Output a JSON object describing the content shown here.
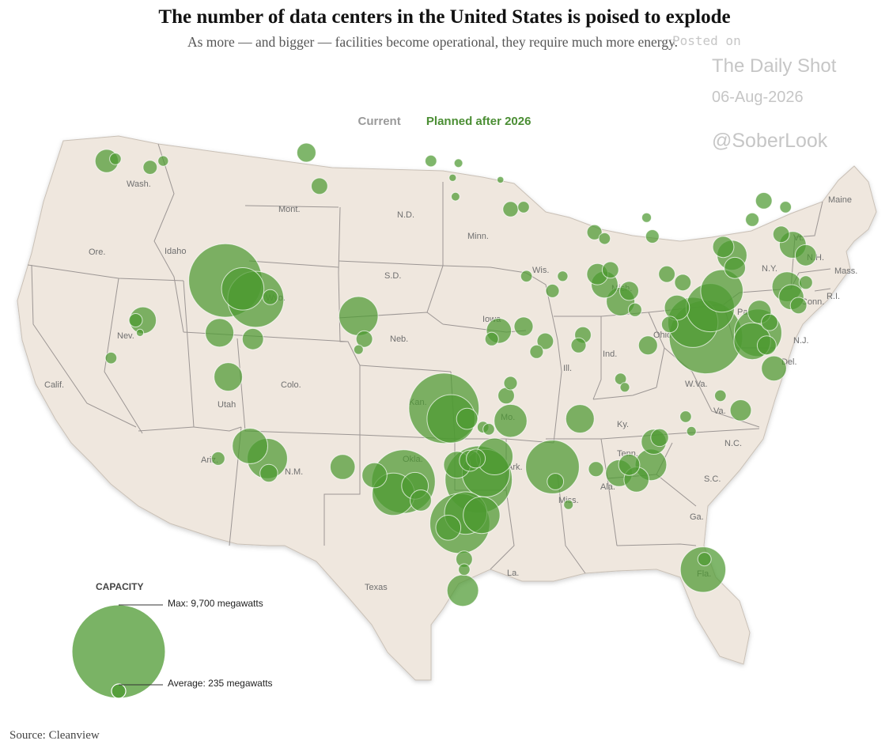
{
  "header": {
    "title": "The number of data centers in the United States is poised to explode",
    "subtitle": "As more — and bigger — facilities become operational, they require much more energy."
  },
  "legend": {
    "current_label": "Current",
    "planned_label": "Planned after 2026",
    "current_color": "#9a9a9a",
    "planned_color": "#4b8e34"
  },
  "watermark": {
    "posted": "Posted on",
    "brand": "The Daily Shot",
    "date": "06-Aug-2026",
    "handle": "@SoberLook"
  },
  "capacity_legend": {
    "title": "CAPACITY",
    "max_label": "Max: 9,700 megawatts",
    "avg_label": "Average: 235 megawatts",
    "max_mw": 9700,
    "avg_mw": 235
  },
  "source": "Source: Cleanview",
  "map": {
    "land_color": "#efe7de",
    "border_color": "#9c9694",
    "bubble_color": "#4e9a32",
    "state_labels": [
      "Wash.",
      "Ore.",
      "Calif.",
      "Nev.",
      "Idaho",
      "Mont.",
      "Wyo.",
      "Utah",
      "Ariz.",
      "Colo.",
      "N.M.",
      "N.D.",
      "S.D.",
      "Neb.",
      "Kan.",
      "Okla.",
      "Texas",
      "Minn.",
      "Iowa",
      "Mo.",
      "Ark.",
      "La.",
      "Wis.",
      "Ill.",
      "Mich.",
      "Ind.",
      "Ohio",
      "Ky.",
      "Tenn.",
      "Miss.",
      "Ala.",
      "Ga.",
      "Fla.",
      "S.C.",
      "N.C.",
      "Va.",
      "W.Va.",
      "Pa.",
      "N.Y.",
      "Vt.",
      "N.H.",
      "Maine",
      "Mass.",
      "Conn.",
      "R.I.",
      "N.J.",
      "Del."
    ],
    "bubbles": [
      {
        "lon": -122.3,
        "lat": 47.1,
        "mw": 600
      },
      {
        "lon": -121.7,
        "lat": 47.2,
        "mw": 150
      },
      {
        "lon": -119.3,
        "lat": 46.8,
        "mw": 220
      },
      {
        "lon": -118.4,
        "lat": 47.1,
        "mw": 120
      },
      {
        "lon": -108.5,
        "lat": 47.5,
        "mw": 400
      },
      {
        "lon": -107.6,
        "lat": 45.9,
        "mw": 300
      },
      {
        "lon": -99.9,
        "lat": 47.1,
        "mw": 150
      },
      {
        "lon": -98.0,
        "lat": 47.0,
        "mw": 80
      },
      {
        "lon": -98.4,
        "lat": 46.3,
        "mw": 60
      },
      {
        "lon": -98.2,
        "lat": 45.4,
        "mw": 80
      },
      {
        "lon": -95.1,
        "lat": 46.2,
        "mw": 50
      },
      {
        "lon": -94.4,
        "lat": 44.8,
        "mw": 260
      },
      {
        "lon": -93.5,
        "lat": 44.9,
        "mw": 150
      },
      {
        "lon": -114.1,
        "lat": 41.4,
        "mw": 6000
      },
      {
        "lon": -112.0,
        "lat": 40.5,
        "mw": 3500
      },
      {
        "lon": -112.9,
        "lat": 41.0,
        "mw": 2000
      },
      {
        "lon": -114.5,
        "lat": 38.9,
        "mw": 900
      },
      {
        "lon": -113.9,
        "lat": 36.8,
        "mw": 900
      },
      {
        "lon": -112.2,
        "lat": 38.6,
        "mw": 500
      },
      {
        "lon": -111.0,
        "lat": 40.6,
        "mw": 250
      },
      {
        "lon": -119.8,
        "lat": 39.5,
        "mw": 800
      },
      {
        "lon": -120.3,
        "lat": 39.5,
        "mw": 200
      },
      {
        "lon": -122.0,
        "lat": 37.7,
        "mw": 150
      },
      {
        "lon": -120.0,
        "lat": 38.9,
        "mw": 60
      },
      {
        "lon": -104.9,
        "lat": 39.7,
        "mw": 1700
      },
      {
        "lon": -104.5,
        "lat": 38.6,
        "mw": 300
      },
      {
        "lon": -104.9,
        "lat": 38.1,
        "mw": 100
      },
      {
        "lon": -112.4,
        "lat": 33.5,
        "mw": 1400
      },
      {
        "lon": -111.2,
        "lat": 32.9,
        "mw": 1800
      },
      {
        "lon": -111.1,
        "lat": 32.2,
        "mw": 350
      },
      {
        "lon": -114.6,
        "lat": 32.9,
        "mw": 200
      },
      {
        "lon": -106.0,
        "lat": 32.5,
        "mw": 700
      },
      {
        "lon": -103.8,
        "lat": 32.1,
        "mw": 700
      },
      {
        "lon": -99.0,
        "lat": 35.3,
        "mw": 5500
      },
      {
        "lon": -98.5,
        "lat": 34.8,
        "mw": 2600
      },
      {
        "lon": -97.4,
        "lat": 34.8,
        "mw": 500
      },
      {
        "lon": -96.3,
        "lat": 34.4,
        "mw": 150
      },
      {
        "lon": -95.9,
        "lat": 34.3,
        "mw": 150
      },
      {
        "lon": -94.7,
        "lat": 35.9,
        "mw": 300
      },
      {
        "lon": -94.4,
        "lat": 36.5,
        "mw": 200
      },
      {
        "lon": -94.4,
        "lat": 34.7,
        "mw": 1200
      },
      {
        "lon": -101.8,
        "lat": 31.8,
        "mw": 4500
      },
      {
        "lon": -102.5,
        "lat": 31.2,
        "mw": 2000
      },
      {
        "lon": -101.0,
        "lat": 31.6,
        "mw": 800
      },
      {
        "lon": -100.6,
        "lat": 30.9,
        "mw": 500
      },
      {
        "lon": -98.1,
        "lat": 32.6,
        "mw": 800
      },
      {
        "lon": -97.2,
        "lat": 32.8,
        "mw": 500
      },
      {
        "lon": -96.8,
        "lat": 32.9,
        "mw": 400
      },
      {
        "lon": -96.6,
        "lat": 31.9,
        "mw": 5000
      },
      {
        "lon": -96.1,
        "lat": 32.2,
        "mw": 2500
      },
      {
        "lon": -95.5,
        "lat": 33.0,
        "mw": 1500
      },
      {
        "lon": -97.9,
        "lat": 29.8,
        "mw": 4000
      },
      {
        "lon": -97.5,
        "lat": 30.3,
        "mw": 2000
      },
      {
        "lon": -96.4,
        "lat": 30.2,
        "mw": 1500
      },
      {
        "lon": -98.7,
        "lat": 29.6,
        "mw": 700
      },
      {
        "lon": -97.7,
        "lat": 26.6,
        "mw": 1100
      },
      {
        "lon": -97.6,
        "lat": 28.1,
        "mw": 300
      },
      {
        "lon": -97.6,
        "lat": 27.6,
        "mw": 150
      },
      {
        "lon": -91.5,
        "lat": 32.5,
        "mw": 3200
      },
      {
        "lon": -91.3,
        "lat": 31.8,
        "mw": 300
      },
      {
        "lon": -89.6,
        "lat": 34.8,
        "mw": 900
      },
      {
        "lon": -90.4,
        "lat": 30.7,
        "mw": 100
      },
      {
        "lon": -88.5,
        "lat": 32.4,
        "mw": 250
      },
      {
        "lon": -86.9,
        "lat": 32.2,
        "mw": 800
      },
      {
        "lon": -86.2,
        "lat": 32.6,
        "mw": 500
      },
      {
        "lon": -85.7,
        "lat": 31.9,
        "mw": 700
      },
      {
        "lon": -84.7,
        "lat": 32.6,
        "mw": 1100
      },
      {
        "lon": -84.5,
        "lat": 33.7,
        "mw": 700
      },
      {
        "lon": -84.1,
        "lat": 33.9,
        "mw": 350
      },
      {
        "lon": -82.3,
        "lat": 34.9,
        "mw": 150
      },
      {
        "lon": -81.9,
        "lat": 34.2,
        "mw": 100
      },
      {
        "lon": -81.1,
        "lat": 27.6,
        "mw": 2300
      },
      {
        "lon": -81.0,
        "lat": 28.1,
        "mw": 200
      },
      {
        "lon": -79.9,
        "lat": 35.9,
        "mw": 150
      },
      {
        "lon": -78.5,
        "lat": 35.2,
        "mw": 500
      },
      {
        "lon": -77.3,
        "lat": 38.9,
        "mw": 2500
      },
      {
        "lon": -77.7,
        "lat": 38.5,
        "mw": 1500
      },
      {
        "lon": -77.2,
        "lat": 39.9,
        "mw": 600
      },
      {
        "lon": -80.9,
        "lat": 38.7,
        "mw": 6000
      },
      {
        "lon": -81.8,
        "lat": 39.4,
        "mw": 2800
      },
      {
        "lon": -80.6,
        "lat": 40.1,
        "mw": 2600
      },
      {
        "lon": -79.8,
        "lat": 40.9,
        "mw": 2000
      },
      {
        "lon": -82.9,
        "lat": 40.1,
        "mw": 700
      },
      {
        "lon": -83.4,
        "lat": 39.3,
        "mw": 300
      },
      {
        "lon": -84.9,
        "lat": 38.3,
        "mw": 400
      },
      {
        "lon": -82.5,
        "lat": 41.3,
        "mw": 300
      },
      {
        "lon": -83.6,
        "lat": 41.7,
        "mw": 300
      },
      {
        "lon": -86.8,
        "lat": 40.4,
        "mw": 900
      },
      {
        "lon": -86.2,
        "lat": 40.9,
        "mw": 400
      },
      {
        "lon": -87.9,
        "lat": 41.2,
        "mw": 800
      },
      {
        "lon": -88.4,
        "lat": 41.7,
        "mw": 500
      },
      {
        "lon": -87.5,
        "lat": 41.9,
        "mw": 300
      },
      {
        "lon": -85.8,
        "lat": 40.0,
        "mw": 200
      },
      {
        "lon": -89.4,
        "lat": 38.8,
        "mw": 300
      },
      {
        "lon": -89.7,
        "lat": 38.3,
        "mw": 250
      },
      {
        "lon": -92.0,
        "lat": 38.5,
        "mw": 300
      },
      {
        "lon": -92.6,
        "lat": 38.0,
        "mw": 200
      },
      {
        "lon": -86.8,
        "lat": 36.7,
        "mw": 150
      },
      {
        "lon": -86.5,
        "lat": 36.3,
        "mw": 100
      },
      {
        "lon": -88.6,
        "lat": 43.7,
        "mw": 250
      },
      {
        "lon": -87.9,
        "lat": 43.4,
        "mw": 150
      },
      {
        "lon": -85.0,
        "lat": 44.4,
        "mw": 100
      },
      {
        "lon": -84.6,
        "lat": 43.5,
        "mw": 200
      },
      {
        "lon": -91.5,
        "lat": 40.9,
        "mw": 200
      },
      {
        "lon": -90.8,
        "lat": 41.6,
        "mw": 120
      },
      {
        "lon": -93.3,
        "lat": 41.6,
        "mw": 150
      },
      {
        "lon": -93.5,
        "lat": 39.2,
        "mw": 400
      },
      {
        "lon": -95.2,
        "lat": 39.0,
        "mw": 700
      },
      {
        "lon": -95.7,
        "lat": 38.6,
        "mw": 200
      },
      {
        "lon": -79.7,
        "lat": 43.0,
        "mw": 500
      },
      {
        "lon": -79.1,
        "lat": 42.6,
        "mw": 1000
      },
      {
        "lon": -78.9,
        "lat": 42.0,
        "mw": 500
      },
      {
        "lon": -75.7,
        "lat": 43.6,
        "mw": 300
      },
      {
        "lon": -74.9,
        "lat": 43.1,
        "mw": 800
      },
      {
        "lon": -74.0,
        "lat": 42.6,
        "mw": 500
      },
      {
        "lon": -75.3,
        "lat": 41.1,
        "mw": 1000
      },
      {
        "lon": -75.0,
        "lat": 40.6,
        "mw": 700
      },
      {
        "lon": -74.5,
        "lat": 40.2,
        "mw": 300
      },
      {
        "lon": -76.9,
        "lat": 45.2,
        "mw": 300
      },
      {
        "lon": -75.4,
        "lat": 44.9,
        "mw": 150
      },
      {
        "lon": -77.7,
        "lat": 44.3,
        "mw": 200
      },
      {
        "lon": -76.5,
        "lat": 39.4,
        "mw": 300
      },
      {
        "lon": -76.7,
        "lat": 38.3,
        "mw": 400
      },
      {
        "lon": -76.2,
        "lat": 37.2,
        "mw": 700
      },
      {
        "lon": -74.0,
        "lat": 41.3,
        "mw": 200
      }
    ]
  }
}
